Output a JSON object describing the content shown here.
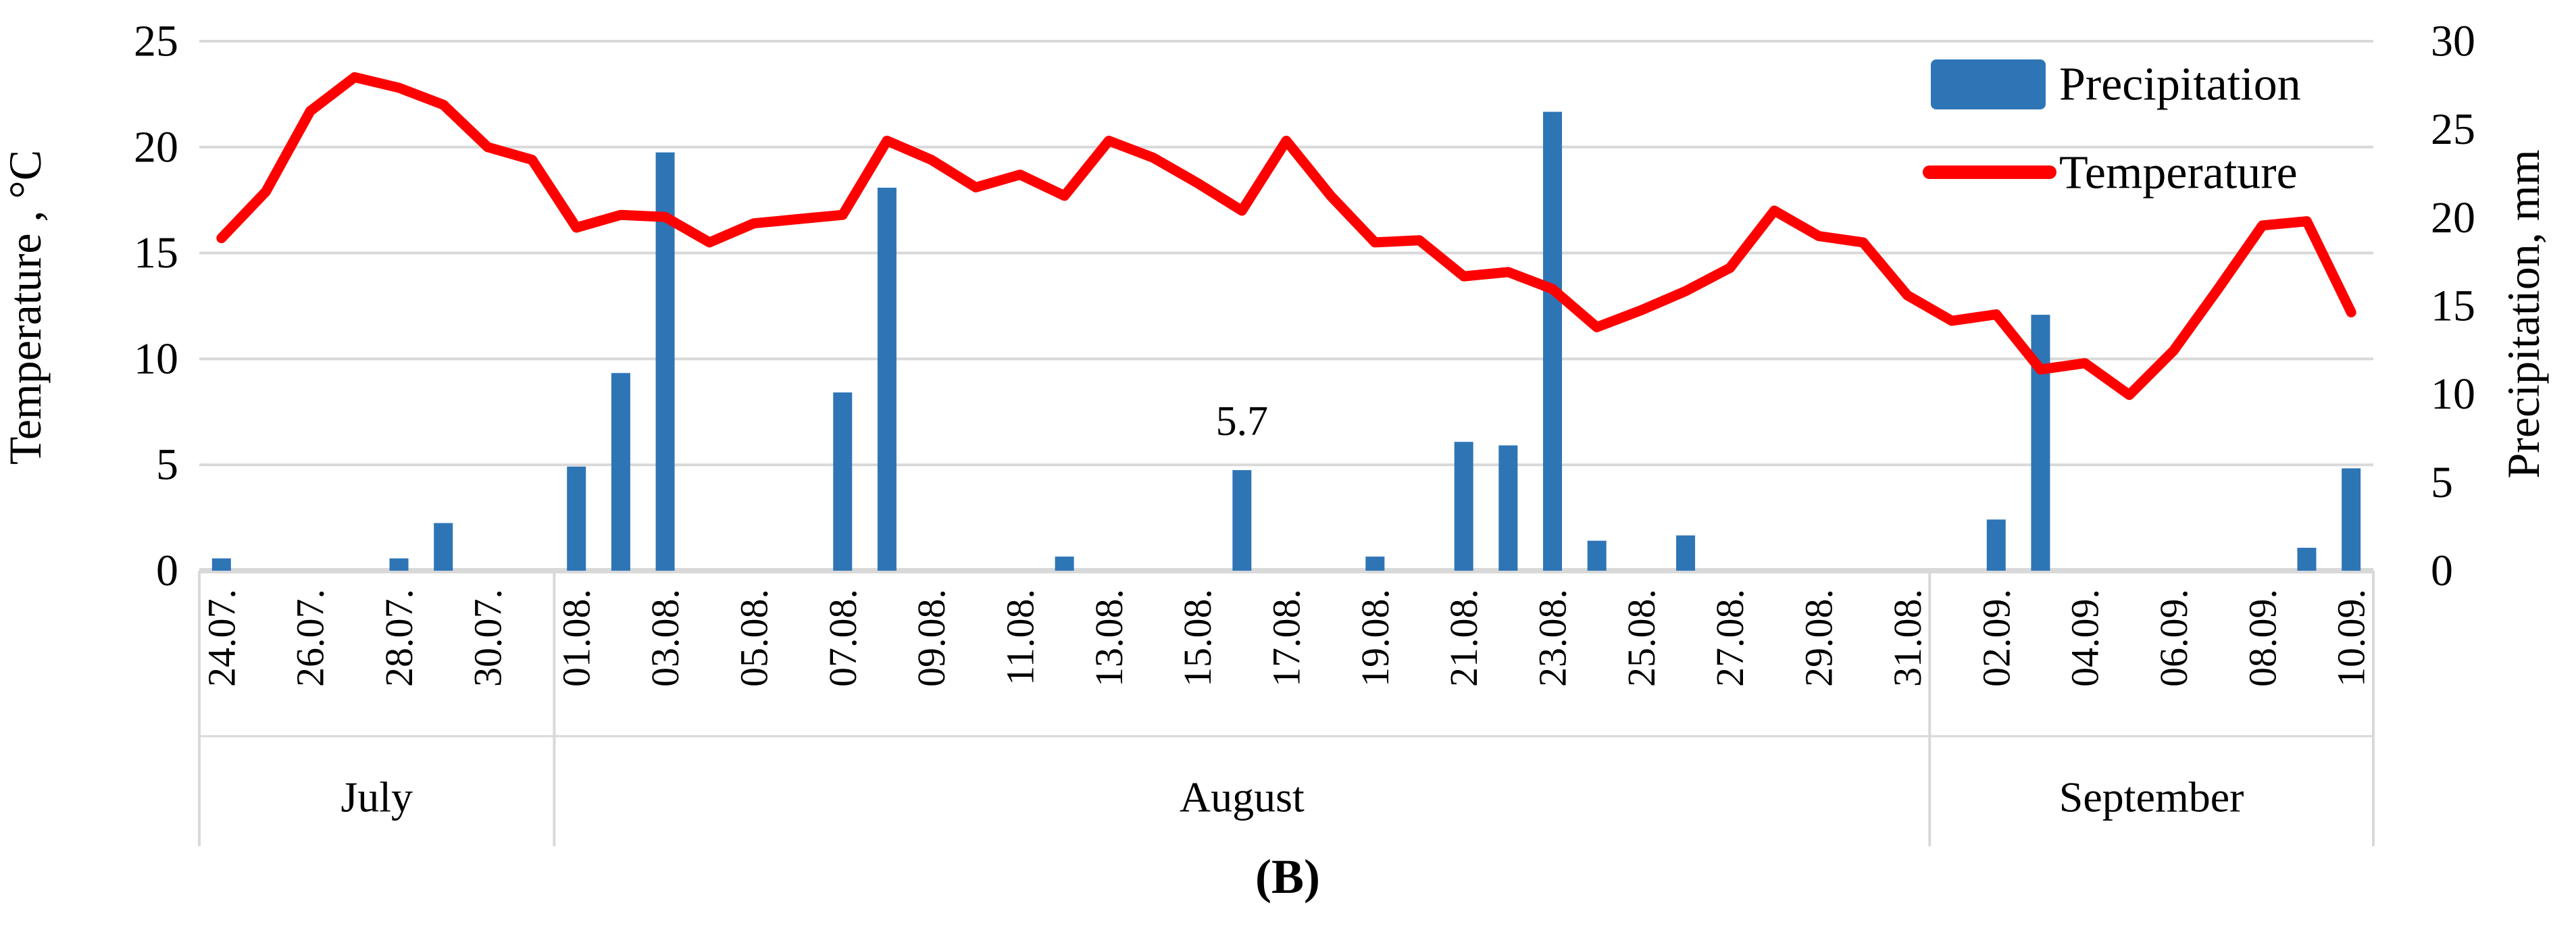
{
  "caption": "(B)",
  "annotation": {
    "text": "5.7",
    "date": "16.08.",
    "series": "Precipitation"
  },
  "legend": {
    "items": [
      {
        "label": "Precipitation",
        "swatch": "bar-swatch"
      },
      {
        "label": "Temperature",
        "swatch": "line-swatch"
      }
    ]
  },
  "colors": {
    "bar": "#2E75B6",
    "line": "#FF0000",
    "gridline": "#D9D9D9",
    "band_line": "#D9D9D9",
    "text": "#000000"
  },
  "chart_data": {
    "type": "bar+line dual-axis",
    "grid": "horizontal gridlines on, at left-axis steps of 5",
    "legend_position": "top-right inside plot",
    "axes": {
      "left": {
        "title": "Temperature , °C",
        "range": [
          0,
          25
        ],
        "tick_step": 5,
        "tick_labels": [
          "0",
          "5",
          "10",
          "15",
          "20",
          "25"
        ]
      },
      "right": {
        "title": "Precipitation, mm",
        "range": [
          0,
          30
        ],
        "tick_step": 5,
        "tick_labels": [
          "0",
          "5",
          "10",
          "15",
          "20",
          "25",
          "30"
        ]
      }
    },
    "x_tick_labels": [
      "24.07.",
      "26.07.",
      "28.07.",
      "30.07.",
      "01.08.",
      "03.08.",
      "05.08.",
      "07.08.",
      "09.08.",
      "11.08.",
      "13.08.",
      "15.08.",
      "17.08.",
      "19.08.",
      "21.08.",
      "23.08.",
      "25.08.",
      "27.08.",
      "29.08.",
      "31.08.",
      "02.09.",
      "04.09.",
      "06.09.",
      "08.09.",
      "10.09."
    ],
    "month_groups": [
      {
        "label": "July",
        "start_index": 0,
        "days": 8
      },
      {
        "label": "August",
        "start_index": 8,
        "days": 31
      },
      {
        "label": "September",
        "start_index": 39,
        "days": 10
      }
    ],
    "x_dates": [
      "24.07.",
      "25.07.",
      "26.07.",
      "27.07.",
      "28.07.",
      "29.07.",
      "30.07.",
      "31.07.",
      "01.08.",
      "02.08.",
      "03.08.",
      "04.08.",
      "05.08.",
      "06.08.",
      "07.08.",
      "08.08.",
      "09.08.",
      "10.08.",
      "11.08.",
      "12.08.",
      "13.08.",
      "14.08.",
      "15.08.",
      "16.08.",
      "17.08.",
      "18.08.",
      "19.08.",
      "20.08.",
      "21.08.",
      "22.08.",
      "23.08.",
      "24.08.",
      "25.08.",
      "26.08.",
      "27.08.",
      "28.08.",
      "29.08.",
      "30.08.",
      "31.08.",
      "01.09.",
      "02.09.",
      "03.09.",
      "04.09.",
      "05.09.",
      "06.09.",
      "07.09.",
      "08.09.",
      "09.09.",
      "10.09."
    ],
    "series": [
      {
        "name": "Precipitation",
        "type": "bar",
        "axis": "right",
        "unit": "mm",
        "values": [
          0.7,
          0,
          0,
          0,
          0.7,
          2.7,
          0,
          0,
          5.9,
          11.2,
          23.7,
          0,
          0,
          0,
          10.1,
          21.7,
          0,
          0,
          0,
          0.8,
          0,
          0,
          0,
          5.7,
          0,
          0,
          0.8,
          0,
          7.3,
          7.1,
          26.0,
          1.7,
          0,
          2.0,
          0,
          0,
          0,
          0,
          0,
          0,
          2.9,
          14.5,
          0,
          0,
          0,
          0,
          0,
          1.3,
          5.8
        ]
      },
      {
        "name": "Temperature",
        "type": "line",
        "axis": "left",
        "unit": "°C",
        "values": [
          15.7,
          17.9,
          21.7,
          23.3,
          22.8,
          22.0,
          20.0,
          19.4,
          16.2,
          16.8,
          16.7,
          15.5,
          16.4,
          16.6,
          16.8,
          20.3,
          19.4,
          18.1,
          18.7,
          17.7,
          20.3,
          19.5,
          18.3,
          17.0,
          20.3,
          17.7,
          15.5,
          15.6,
          13.9,
          14.1,
          13.3,
          11.5,
          12.3,
          13.2,
          14.3,
          17.0,
          15.8,
          15.5,
          13.0,
          11.8,
          12.1,
          9.5,
          9.8,
          8.3,
          10.4,
          13.3,
          16.3,
          16.5,
          12.2
        ]
      }
    ]
  }
}
